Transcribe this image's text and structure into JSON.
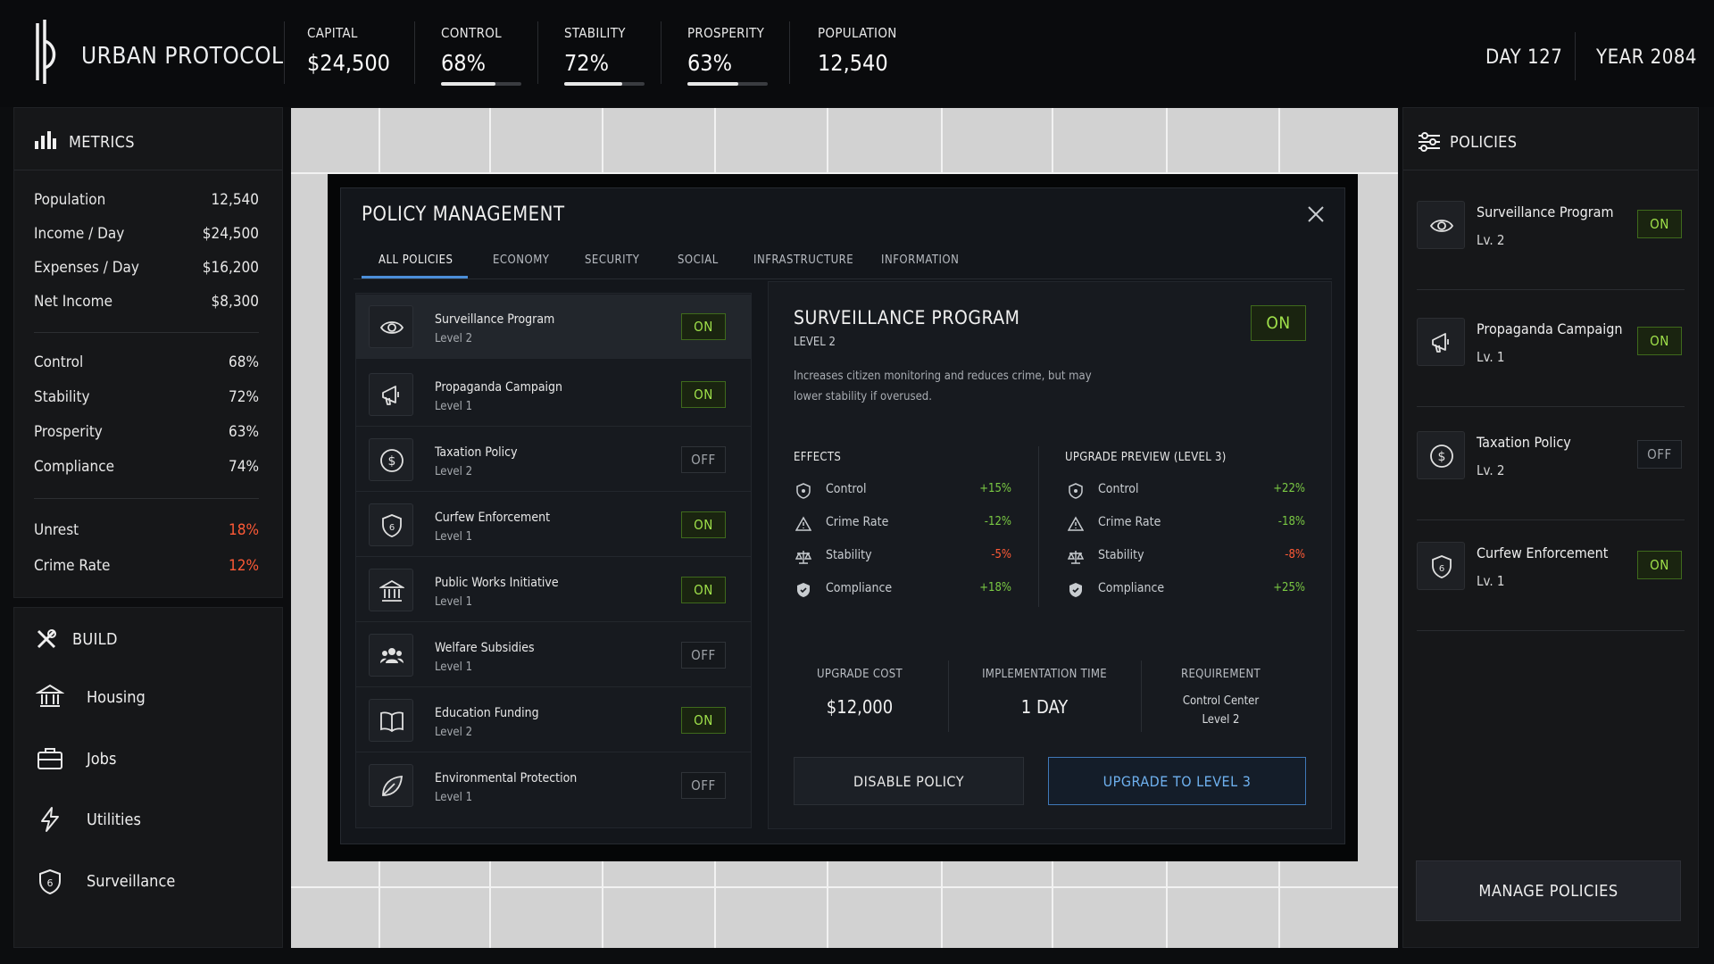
{
  "app": {
    "title": "URBAN PROTOCOL",
    "day": "DAY 127",
    "year": "YEAR 2084"
  },
  "stats": [
    {
      "label": "CAPITAL",
      "value": "$24,500"
    },
    {
      "label": "CONTROL",
      "value": "68%",
      "level": 0.68
    },
    {
      "label": "STABILITY",
      "value": "72%",
      "level": 0.72
    },
    {
      "label": "PROSPERITY",
      "value": "63%",
      "level": 0.63
    },
    {
      "label": "POPULATION",
      "value": "12,540"
    }
  ],
  "metrics": {
    "title": "METRICS",
    "economy": [
      {
        "label": "Population",
        "value": "12,540"
      },
      {
        "label": "Income / Day",
        "value": "$24,500"
      },
      {
        "label": "Expenses / Day",
        "value": "$16,200"
      },
      {
        "label": "Net Income",
        "value": "$8,300"
      }
    ],
    "ratings": [
      {
        "label": "Control",
        "value": "68%"
      },
      {
        "label": "Stability",
        "value": "72%"
      },
      {
        "label": "Prosperity",
        "value": "63%"
      },
      {
        "label": "Compliance",
        "value": "74%"
      }
    ],
    "risks": [
      {
        "label": "Unrest",
        "value": "18%"
      },
      {
        "label": "Crime Rate",
        "value": "12%"
      }
    ]
  },
  "build": {
    "title": "BUILD",
    "items": [
      "Housing",
      "Jobs",
      "Utilities",
      "Surveillance"
    ]
  },
  "modal": {
    "title": "POLICY MANAGEMENT",
    "tabs": [
      "ALL POLICIES",
      "ECONOMY",
      "SECURITY",
      "SOCIAL",
      "INFRASTRUCTURE",
      "INFORMATION"
    ],
    "policies": [
      {
        "name": "Surveillance Program",
        "level": "Level 2",
        "state": "ON",
        "icon": "eye-icon"
      },
      {
        "name": "Propaganda Campaign",
        "level": "Level 1",
        "state": "ON",
        "icon": "megaphone-icon"
      },
      {
        "name": "Taxation Policy",
        "level": "Level 2",
        "state": "OFF",
        "icon": "dollar-icon"
      },
      {
        "name": "Curfew Enforcement",
        "level": "Level 1",
        "state": "ON",
        "icon": "shield-6-icon"
      },
      {
        "name": "Public Works Initiative",
        "level": "Level 1",
        "state": "ON",
        "icon": "building-icon"
      },
      {
        "name": "Welfare Subsidies",
        "level": "Level 1",
        "state": "OFF",
        "icon": "people-icon"
      },
      {
        "name": "Education Funding",
        "level": "Level 2",
        "state": "ON",
        "icon": "book-icon"
      },
      {
        "name": "Environmental Protection",
        "level": "Level 1",
        "state": "OFF",
        "icon": "leaf-icon"
      }
    ],
    "detail": {
      "title": "SURVEILLANCE PROGRAM",
      "level": "LEVEL 2",
      "state": "ON",
      "description": "Increases citizen monitoring and reduces crime, but may lower stability if overused.",
      "effects_title": "EFFECTS",
      "effects": [
        {
          "label": "Control",
          "value": "+15%"
        },
        {
          "label": "Crime Rate",
          "value": "-12%"
        },
        {
          "label": "Stability",
          "value": "-5%"
        },
        {
          "label": "Compliance",
          "value": "+18%"
        }
      ],
      "preview_title": "UPGRADE PREVIEW (LEVEL 3)",
      "preview": [
        {
          "label": "Control",
          "value": "+22%"
        },
        {
          "label": "Crime Rate",
          "value": "-18%"
        },
        {
          "label": "Stability",
          "value": "-8%"
        },
        {
          "label": "Compliance",
          "value": "+25%"
        }
      ],
      "cost_label": "UPGRADE COST",
      "cost": "$12,000",
      "time_label": "IMPLEMENTATION TIME",
      "time": "1 DAY",
      "req_label": "REQUIREMENT",
      "req_line1": "Control Center",
      "req_line2": "Level 2",
      "disable_label": "DISABLE POLICY",
      "upgrade_label": "UPGRADE TO LEVEL 3"
    }
  },
  "policies_panel": {
    "title": "POLICIES",
    "items": [
      {
        "name": "Surveillance Program",
        "level": "Lv. 2",
        "state": "ON"
      },
      {
        "name": "Propaganda Campaign",
        "level": "Lv. 1",
        "state": "ON"
      },
      {
        "name": "Taxation Policy",
        "level": "Lv. 2",
        "state": "OFF"
      },
      {
        "name": "Curfew Enforcement",
        "level": "Lv. 1",
        "state": "ON"
      }
    ],
    "manage_label": "MANAGE POLICIES"
  },
  "colors": {
    "on": "#9fe04a",
    "negative": "#ff5a36",
    "accent": "#4b8ed8"
  }
}
